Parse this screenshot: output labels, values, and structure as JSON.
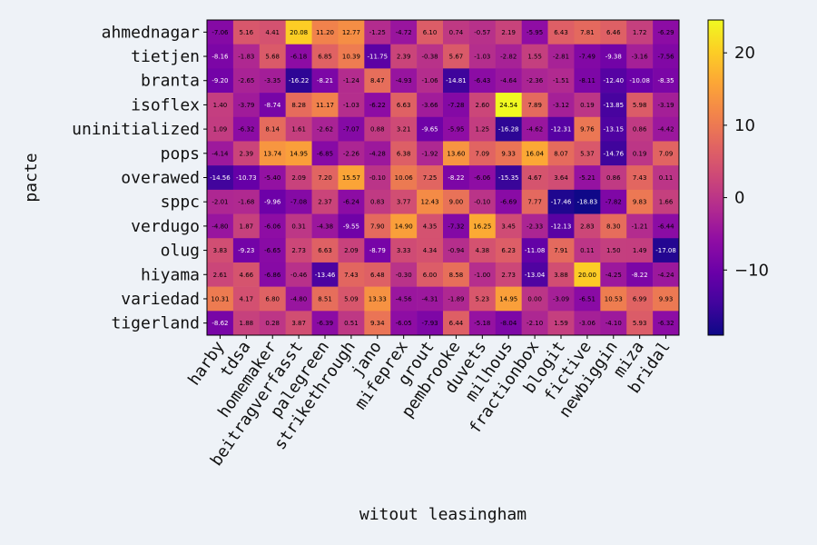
{
  "chart_data": {
    "type": "heatmap",
    "title": "",
    "xlabel": "witout leasingham",
    "ylabel": "pacte",
    "x_categories": [
      "harby",
      "tdsa",
      "homemaker",
      "beitragverfasst",
      "palegreen",
      "strikethrough",
      "jano",
      "mifeprex",
      "grout",
      "pembrooke",
      "duvets",
      "milhous",
      "fractionbox",
      "blogit",
      "fictive",
      "newbiggin",
      "miza",
      "bridal"
    ],
    "y_categories": [
      "ahmednagar",
      "tietjen",
      "branta",
      "isoflex",
      "uninitialized",
      "pops",
      "overawed",
      "sppc",
      "verdugo",
      "olug",
      "hiyama",
      "variedad",
      "tigerland"
    ],
    "values": [
      [
        -7.06,
        5.16,
        4.41,
        20.08,
        11.2,
        12.77,
        -1.25,
        -4.72,
        6.1,
        0.74,
        -0.57,
        2.19,
        -5.95,
        6.43,
        7.81,
        6.46,
        1.72,
        -6.29
      ],
      [
        -8.16,
        -1.83,
        5.68,
        -6.18,
        6.85,
        10.39,
        -11.75,
        2.39,
        -0.38,
        5.67,
        -1.03,
        -2.82,
        1.55,
        -2.81,
        -7.49,
        -9.38,
        -3.16,
        -7.56
      ],
      [
        -9.2,
        -2.65,
        -3.35,
        -16.22,
        -8.21,
        -1.24,
        8.47,
        -4.93,
        -1.06,
        -14.81,
        -6.43,
        -4.64,
        -2.36,
        -1.51,
        -8.11,
        -12.4,
        -10.08,
        -8.35
      ],
      [
        1.4,
        -3.79,
        -8.74,
        8.28,
        11.17,
        -1.03,
        -6.22,
        6.63,
        -3.66,
        -7.28,
        2.6,
        24.54,
        7.89,
        -3.12,
        0.19,
        -13.85,
        5.98,
        -3.19
      ],
      [
        1.09,
        -6.32,
        8.14,
        1.61,
        -2.62,
        -7.07,
        0.88,
        3.21,
        -9.65,
        -5.95,
        1.25,
        -16.28,
        -4.62,
        -12.31,
        9.76,
        -13.15,
        0.86,
        -4.42
      ],
      [
        -4.14,
        2.39,
        13.74,
        14.95,
        -6.85,
        -2.26,
        -4.28,
        6.38,
        -1.92,
        13.6,
        7.09,
        9.33,
        16.04,
        8.07,
        5.37,
        -14.76,
        0.19,
        7.09
      ],
      [
        -14.56,
        -10.73,
        -5.4,
        2.09,
        7.2,
        15.57,
        -0.1,
        10.06,
        7.25,
        -8.22,
        -6.06,
        -15.35,
        4.67,
        3.64,
        -5.21,
        0.86,
        7.43,
        0.11
      ],
      [
        -2.01,
        -1.68,
        -9.96,
        -7.08,
        2.37,
        -6.24,
        0.83,
        3.77,
        12.43,
        9.0,
        -0.1,
        -6.69,
        7.77,
        -17.46,
        -18.83,
        -7.82,
        9.83,
        1.66
      ],
      [
        -4.8,
        1.87,
        -6.06,
        0.31,
        -4.38,
        -9.55,
        7.9,
        14.9,
        4.35,
        -7.32,
        16.25,
        3.45,
        -2.33,
        -12.13,
        2.83,
        8.3,
        -1.21,
        -6.44
      ],
      [
        3.83,
        -9.23,
        -6.65,
        2.73,
        6.63,
        2.09,
        -8.79,
        3.33,
        4.34,
        -0.94,
        4.38,
        6.23,
        -11.08,
        7.91,
        0.11,
        1.5,
        1.49,
        -17.08
      ],
      [
        2.61,
        4.66,
        -6.86,
        -0.46,
        -13.46,
        7.43,
        6.48,
        -0.3,
        6.0,
        8.58,
        -1.0,
        2.73,
        -13.04,
        3.88,
        20.0,
        -4.25,
        -8.22,
        -4.24
      ],
      [
        10.31,
        4.17,
        6.8,
        -4.8,
        8.51,
        5.09,
        13.33,
        -4.56,
        -4.31,
        -1.89,
        5.23,
        14.95,
        0.0,
        -3.09,
        -6.51,
        10.53,
        6.99,
        9.93
      ],
      [
        -8.62,
        1.88,
        0.28,
        3.87,
        -6.39,
        0.51,
        9.34,
        -6.05,
        -7.93,
        6.44,
        -5.18,
        -8.04,
        -2.1,
        1.59,
        -3.06,
        -4.1,
        5.93,
        -6.32
      ]
    ],
    "colormap": "plasma",
    "vmin": -19,
    "vmax": 24.54,
    "colorbar_ticks": [
      20,
      10,
      0,
      -10
    ],
    "colorbar_tick_labels": [
      "20",
      "10",
      "0",
      "−10"
    ]
  }
}
